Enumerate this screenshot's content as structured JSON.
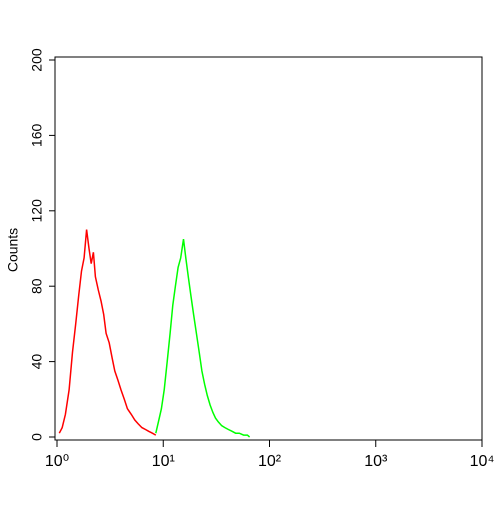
{
  "chart_data": {
    "type": "line",
    "ylabel": "Counts",
    "xscale": "log",
    "xlim": [
      1,
      10000
    ],
    "ylim": [
      0,
      200
    ],
    "xticks": [
      {
        "value": 1,
        "label": "10⁰"
      },
      {
        "value": 10,
        "label": "10¹"
      },
      {
        "value": 100,
        "label": "10²"
      },
      {
        "value": 1000,
        "label": "10³"
      },
      {
        "value": 10000,
        "label": "10⁴"
      }
    ],
    "yticks": [
      0,
      40,
      80,
      120,
      160,
      200
    ],
    "series": [
      {
        "color": "#ff0000",
        "x": [
          1.05,
          1.12,
          1.2,
          1.3,
          1.4,
          1.5,
          1.6,
          1.7,
          1.8,
          1.9,
          2.0,
          2.1,
          2.2,
          2.3,
          2.45,
          2.6,
          2.75,
          2.9,
          3.1,
          3.3,
          3.5,
          3.75,
          4.0,
          4.3,
          4.6,
          5.0,
          5.4,
          5.8,
          6.3,
          6.8,
          7.3,
          7.9,
          8.5
        ],
        "values": [
          2,
          5,
          12,
          25,
          45,
          60,
          75,
          88,
          95,
          110,
          100,
          92,
          98,
          85,
          78,
          72,
          65,
          55,
          50,
          42,
          35,
          30,
          25,
          20,
          15,
          12,
          9,
          7,
          5,
          4,
          3,
          2,
          1
        ]
      },
      {
        "color": "#00ff00",
        "x": [
          8.5,
          9.0,
          9.6,
          10.2,
          10.9,
          11.6,
          12.3,
          13.0,
          13.8,
          14.6,
          15.5,
          16.3,
          17.2,
          18.2,
          19.3,
          20.5,
          21.8,
          23.1,
          24.5,
          26,
          27.6,
          29.3,
          31,
          33,
          35.5,
          38,
          41,
          44.5,
          48,
          52,
          57,
          62,
          65
        ],
        "values": [
          2,
          8,
          15,
          25,
          40,
          55,
          70,
          80,
          90,
          95,
          105,
          95,
          85,
          75,
          65,
          55,
          45,
          35,
          28,
          22,
          17,
          13,
          10,
          8,
          6,
          5,
          4,
          3,
          2,
          2,
          1,
          1,
          0
        ]
      }
    ]
  }
}
